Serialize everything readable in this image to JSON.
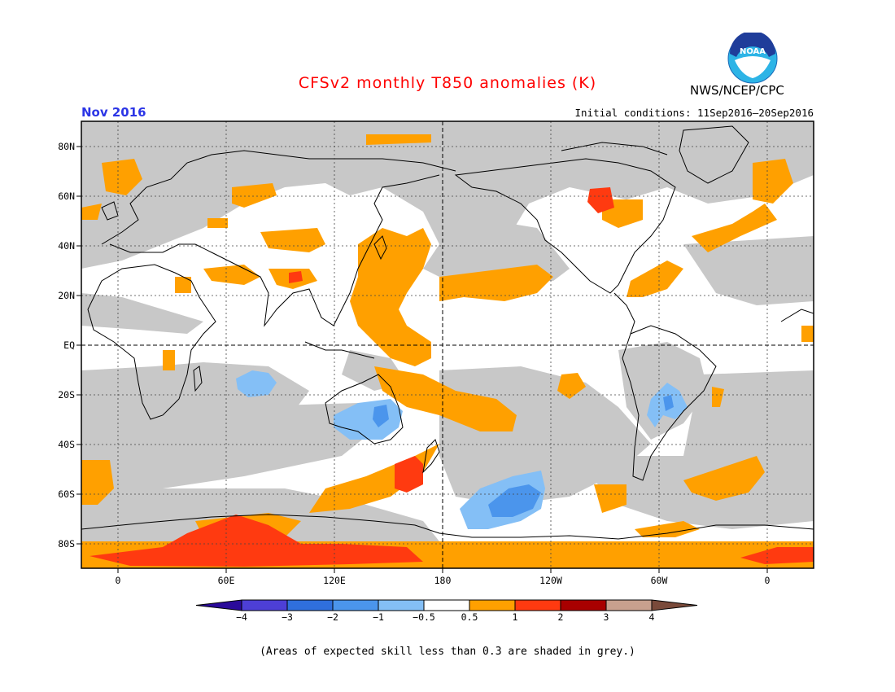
{
  "title": "CFSv2 monthly T850 anomalies (K)",
  "month": "Nov 2016",
  "initial_conditions": "Initial conditions: 11Sep2016–20Sep2016",
  "agency": "NWS/NCEP/CPC",
  "logo_text": "NOAA",
  "note": "(Areas of expected skill less than 0.3 are shaded in grey.)",
  "lat_labels": [
    "80N",
    "60N",
    "40N",
    "20N",
    "EQ",
    "20S",
    "40S",
    "60S",
    "80S"
  ],
  "lon_labels": [
    "0",
    "60E",
    "120E",
    "180",
    "120W",
    "60W",
    "0"
  ],
  "colorbar": {
    "labels": [
      "−4",
      "−3",
      "−2",
      "−1",
      "−0.5",
      "0.5",
      "1",
      "2",
      "3",
      "4"
    ],
    "colors": [
      "#2a0a9a",
      "#4d3fd6",
      "#2f6fdc",
      "#4b95ec",
      "#84bff6",
      "#ffffff",
      "#ffa000",
      "#ff3a10",
      "#a80000",
      "#c8a08e",
      "#7a4a3a"
    ]
  },
  "palette": {
    "skill_grey": "#c8c8c8",
    "title_red": "#ff0000",
    "month_blue": "#2b35e6"
  }
}
